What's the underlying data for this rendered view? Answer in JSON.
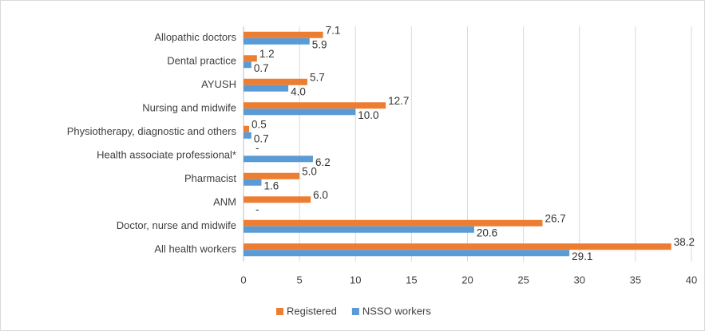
{
  "chart_data": {
    "type": "hbar",
    "categories": [
      "Allopathic doctors",
      "Dental practice",
      "AYUSH",
      "Nursing and midwife",
      "Physiotherapy, diagnostic and others",
      "Health associate professional*",
      "Pharmacist",
      "ANM",
      "Doctor, nurse and midwife",
      "All health workers"
    ],
    "series": [
      {
        "name": "Registered",
        "color": "#ED7D31",
        "values": [
          7.1,
          1.2,
          5.7,
          12.7,
          0.5,
          null,
          5.0,
          6.0,
          26.7,
          38.2
        ],
        "value_labels": [
          "7.1",
          "1.2",
          "5.7",
          "12.7",
          "0.5",
          "-",
          "5.0",
          "6.0",
          "26.7",
          "38.2"
        ]
      },
      {
        "name": "NSSO workers",
        "color": "#5B9BD5",
        "values": [
          5.9,
          0.7,
          4.0,
          10.0,
          0.7,
          6.2,
          1.6,
          null,
          20.6,
          29.1
        ],
        "value_labels": [
          "5.9",
          "0.7",
          "4.0",
          "10.0",
          "0.7",
          "6.2",
          "1.6",
          "-",
          "20.6",
          "29.1"
        ]
      }
    ],
    "xlim": [
      0,
      40
    ],
    "xticks": [
      0,
      5,
      10,
      15,
      20,
      25,
      30,
      35,
      40
    ],
    "grid": true,
    "legend": "bottom"
  }
}
